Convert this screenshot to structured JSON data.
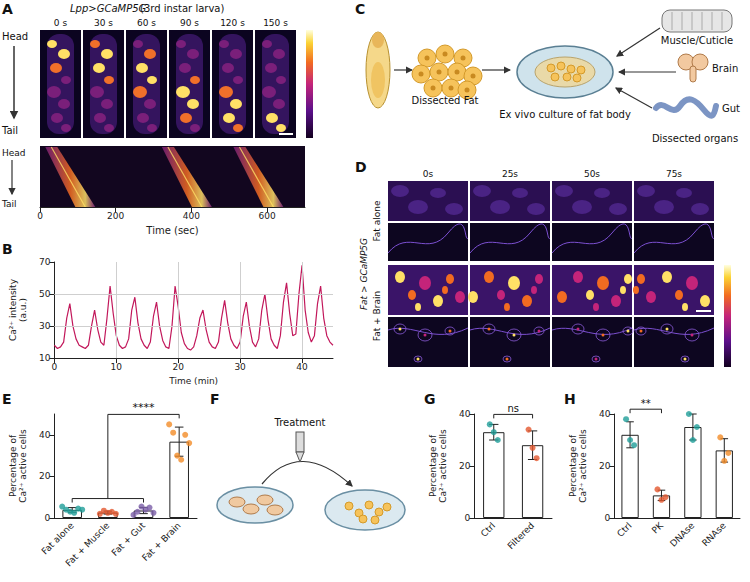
{
  "panel_A": {
    "letter": "A",
    "genotype": "Lpp>GCaMP5G",
    "stage": "(3rd instar larva)",
    "times": [
      "0 s",
      "30 s",
      "60 s",
      "90 s",
      "120 s",
      "150 s"
    ],
    "head": "Head",
    "tail": "Tail",
    "kymograph": {
      "head": "Head",
      "tail": "Tail",
      "xlabel": "Time (sec)",
      "xlim": [
        0,
        700
      ],
      "xticks": [
        0,
        200,
        400,
        600
      ]
    }
  },
  "panel_C": {
    "letter": "C",
    "fat": "Dissected Fat",
    "culture": "Ex vivo culture of fat body",
    "organs": [
      "Muscle/Cuticle",
      "Brain",
      "Gut"
    ],
    "organs_title": "Dissected organs"
  },
  "panel_D": {
    "letter": "D",
    "times": [
      "0s",
      "25s",
      "50s",
      "75s"
    ],
    "genotype": "Fat > GCaMP5G",
    "rows": [
      "Fat alone",
      "Fat + Brain"
    ]
  },
  "panel_F": {
    "letter": "F",
    "label": "Treatment"
  },
  "chart_data": [
    {
      "panel": "B",
      "type": "line",
      "xlabel": "Time (min)",
      "ylabel": "Ca²⁺ intensity (a.u.)",
      "color": "#c2185b",
      "grid": true,
      "xlim": [
        0,
        45
      ],
      "xticks": [
        0,
        10,
        20,
        30,
        40
      ],
      "ylim": [
        10,
        70
      ],
      "yticks": [
        10,
        30,
        50,
        70
      ],
      "x": [
        0,
        0.5,
        1,
        1.5,
        2,
        2.5,
        3,
        3.5,
        4,
        4.5,
        5,
        5.5,
        6,
        6.5,
        7,
        7.5,
        8,
        8.5,
        9,
        9.5,
        10,
        10.5,
        11,
        11.5,
        12,
        12.5,
        13,
        13.5,
        14,
        14.5,
        15,
        15.5,
        16,
        16.5,
        17,
        17.5,
        18,
        18.5,
        19,
        19.5,
        20,
        20.5,
        21,
        21.5,
        22,
        22.5,
        23,
        23.5,
        24,
        24.5,
        25,
        25.5,
        26,
        26.5,
        27,
        27.5,
        28,
        28.5,
        29,
        29.5,
        30,
        30.5,
        31,
        31.5,
        32,
        32.5,
        33,
        33.5,
        34,
        34.5,
        35,
        35.5,
        36,
        36.5,
        37,
        37.5,
        38,
        38.5,
        39,
        39.5,
        40,
        40.5,
        41,
        41.5,
        42,
        42.5,
        43,
        43.5,
        44,
        44.5,
        45
      ],
      "values": [
        18,
        16,
        17,
        20,
        35,
        44,
        30,
        22,
        18,
        17,
        16,
        18,
        30,
        40,
        28,
        20,
        18,
        35,
        55,
        38,
        24,
        18,
        16,
        17,
        22,
        40,
        48,
        32,
        22,
        18,
        16,
        20,
        36,
        45,
        30,
        21,
        17,
        16,
        30,
        55,
        42,
        26,
        19,
        16,
        15,
        17,
        24,
        35,
        40,
        28,
        20,
        17,
        16,
        20,
        35,
        46,
        32,
        22,
        18,
        16,
        20,
        36,
        45,
        30,
        20,
        17,
        22,
        40,
        50,
        34,
        22,
        18,
        16,
        24,
        45,
        57,
        38,
        24,
        25,
        50,
        68,
        40,
        26,
        20,
        24,
        44,
        55,
        35,
        24,
        20,
        18
      ]
    },
    {
      "panel": "E",
      "type": "bar",
      "ylabel": "Percentage of Ca²⁺ active cells",
      "categories": [
        "Fat alone",
        "Fat + Muscle",
        "Fat + Gut",
        "Fat + Brain"
      ],
      "values": [
        3.9,
        2.6,
        3.6,
        36.7
      ],
      "errors": [
        1.1,
        0.7,
        1.5,
        7
      ],
      "points": [
        [
          5.5,
          4,
          3,
          2.5,
          4.5,
          4
        ],
        [
          2,
          3.5,
          2.5,
          3,
          2
        ],
        [
          1.5,
          3,
          5.5,
          4,
          5,
          2.5
        ],
        [
          45,
          41,
          30,
          28,
          40,
          36
        ]
      ],
      "colors": [
        "#1f9e98",
        "#e4572e",
        "#7b5ea7",
        "#f28c28"
      ],
      "ylim": [
        0,
        50
      ],
      "yticks": [
        0,
        20,
        40
      ],
      "annotations": [
        {
          "label": "****",
          "from": [
            "Fat alone",
            "Fat + Muscle",
            "Fat + Gut"
          ],
          "to": "Fat + Brain"
        }
      ]
    },
    {
      "panel": "G",
      "type": "bar",
      "ylabel": "Percentage of Ca²⁺ active cells",
      "categories": [
        "Ctrl",
        "Filtered"
      ],
      "values": [
        33,
        28
      ],
      "errors": [
        3,
        5.5
      ],
      "points": [
        [
          36,
          33,
          30
        ],
        [
          34,
          27,
          23
        ]
      ],
      "colors": [
        "#1f9e98",
        "#e4572e"
      ],
      "ylim": [
        0,
        40
      ],
      "yticks": [
        0,
        20,
        40
      ],
      "annotations": [
        {
          "label": "ns",
          "from": [
            "Ctrl"
          ],
          "to": "Filtered"
        }
      ]
    },
    {
      "panel": "H",
      "type": "bar",
      "ylabel": "Percentage of Ca²⁺ active cells",
      "categories": [
        "Ctrl",
        "PK",
        "DNAse",
        "RNAse"
      ],
      "values": [
        32,
        8.7,
        35,
        26
      ],
      "errors": [
        5,
        2,
        5,
        4.5
      ],
      "points": [
        [
          38,
          30,
          28
        ],
        [
          11,
          7,
          8
        ],
        [
          40,
          30,
          35
        ],
        [
          31,
          22,
          25
        ]
      ],
      "colors": [
        "#1f9e98",
        "#e4572e",
        "#1f9e98",
        "#f28c28"
      ],
      "ylim": [
        0,
        40
      ],
      "yticks": [
        0,
        20,
        40
      ],
      "annotations": [
        {
          "label": "**",
          "from": [
            "Ctrl"
          ],
          "to": "PK"
        }
      ]
    }
  ]
}
